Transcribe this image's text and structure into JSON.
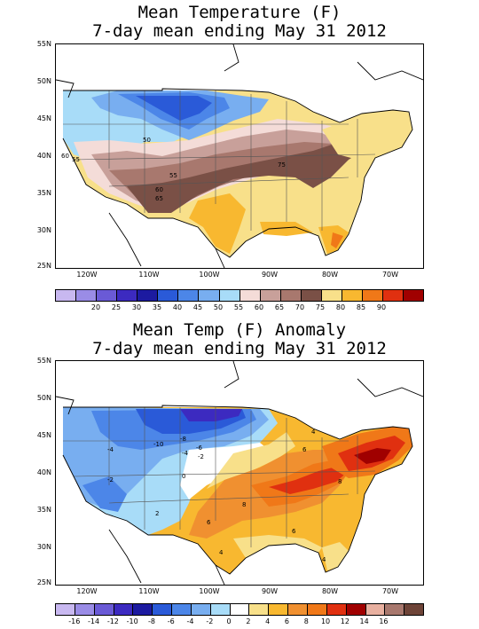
{
  "map1": {
    "title_line1": "Mean Temperature (F)",
    "title_line2": "7-day mean ending May 31 2012",
    "lat_labels": [
      "55N",
      "50N",
      "45N",
      "40N",
      "35N",
      "30N",
      "25N"
    ],
    "lon_labels": [
      "120W",
      "110W",
      "100W",
      "90W",
      "80W",
      "70W"
    ],
    "contour_labels": [
      "50",
      "55",
      "55",
      "60",
      "60",
      "65",
      "75"
    ],
    "colorbar_labels": [
      "20",
      "25",
      "30",
      "35",
      "40",
      "45",
      "50",
      "55",
      "60",
      "65",
      "70",
      "75",
      "80",
      "85",
      "90"
    ],
    "colorbar_colors": [
      "#c8b8f0",
      "#9a8ce6",
      "#6a5ad6",
      "#3c2ac0",
      "#1c1aa0",
      "#2a5ad8",
      "#4c86e8",
      "#78aef0",
      "#a8dcf8",
      "#f4dcd8",
      "#c8a09a",
      "#a8786e",
      "#7a5046",
      "#f8e08a",
      "#f8b830",
      "#f07818",
      "#e03010",
      "#a00000"
    ],
    "regions": [
      {
        "name": "northwest-cool",
        "color": "#a8dcf8"
      },
      {
        "name": "north-plains-cold",
        "color": "#4c86e8"
      },
      {
        "name": "plains-mild",
        "color": "#c8a09a"
      },
      {
        "name": "midwest-warm",
        "color": "#7a5046"
      },
      {
        "name": "south-warm",
        "color": "#f8e08a"
      },
      {
        "name": "texas-hot",
        "color": "#f8b830"
      },
      {
        "name": "florida-hot",
        "color": "#f07818"
      }
    ]
  },
  "map2": {
    "title_line1": "Mean Temp (F) Anomaly",
    "title_line2": "7-day mean ending May 31 2012",
    "lat_labels": [
      "55N",
      "50N",
      "45N",
      "40N",
      "35N",
      "30N",
      "25N"
    ],
    "lon_labels": [
      "120W",
      "110W",
      "100W",
      "90W",
      "80W",
      "70W"
    ],
    "contour_labels": [
      "-4",
      "-10",
      "-8",
      "-6",
      "-4",
      "-2",
      "-2",
      "0",
      "2",
      "6",
      "8",
      "6",
      "6",
      "8",
      "4",
      "4",
      "4"
    ],
    "colorbar_labels": [
      "-16",
      "-14",
      "-12",
      "-10",
      "-8",
      "-6",
      "-4",
      "-2",
      "0",
      "2",
      "4",
      "6",
      "8",
      "10",
      "12",
      "14",
      "16"
    ],
    "colorbar_colors": [
      "#c8b8f0",
      "#9a8ce6",
      "#6a5ad6",
      "#3c2ac0",
      "#1c1aa0",
      "#2a5ad8",
      "#4c86e8",
      "#78aef0",
      "#a8dcf8",
      "#ffffff",
      "#f8e08a",
      "#f8b830",
      "#f09030",
      "#f07818",
      "#e03010",
      "#a00000",
      "#e8b0a0",
      "#a8786e",
      "#6e4438"
    ]
  }
}
